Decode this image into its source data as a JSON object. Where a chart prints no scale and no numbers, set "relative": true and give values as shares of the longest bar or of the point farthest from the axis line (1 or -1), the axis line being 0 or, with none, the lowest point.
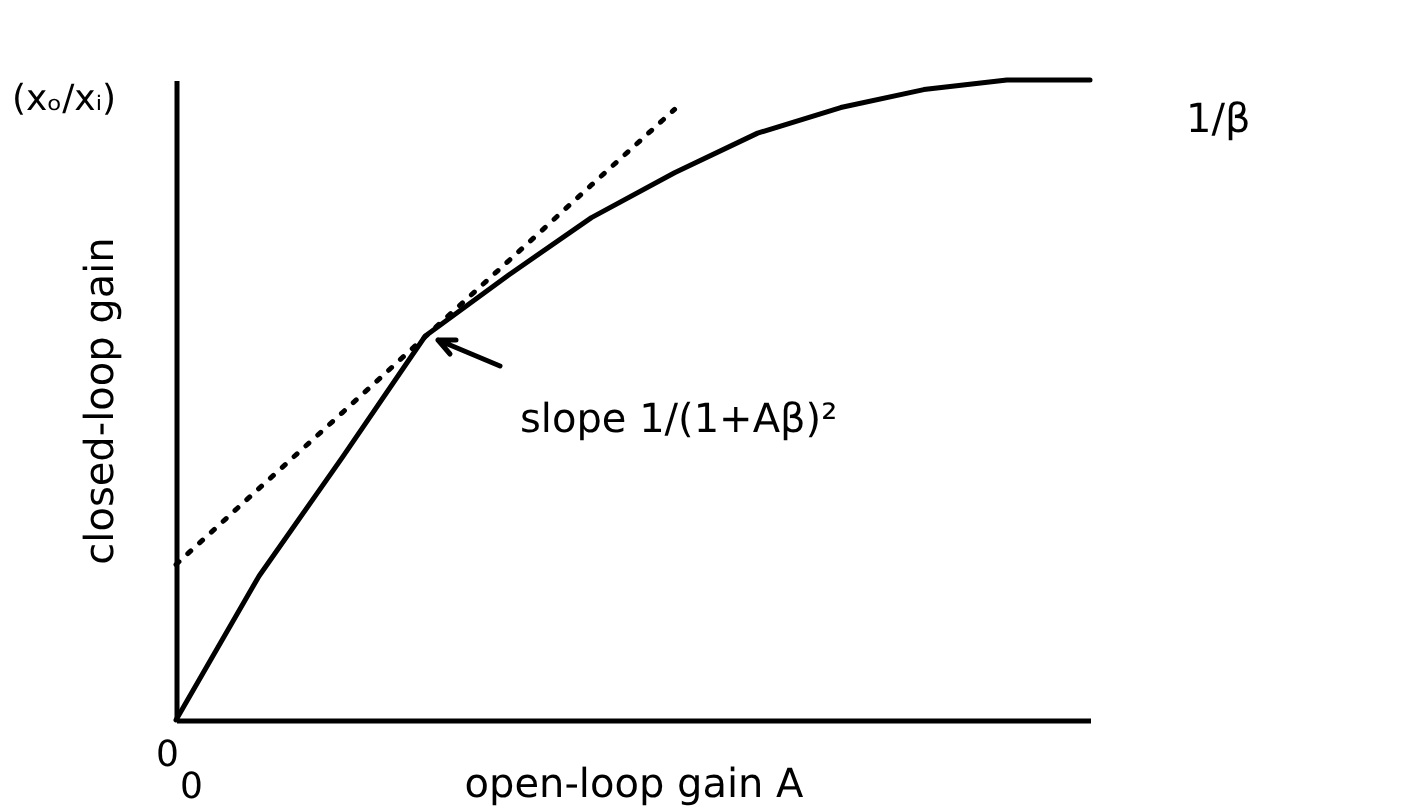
{
  "chart_data": {
    "type": "line",
    "relative": true,
    "xlabel": "open-loop gain A",
    "ylabel": "closed-loop gain",
    "categories": [
      null,
      null,
      null,
      null,
      null,
      null,
      null,
      null,
      null,
      null,
      null,
      null
    ],
    "series": [
      {
        "color": "#000000",
        "line_style": "solid",
        "values": [
          0,
          0.225,
          0.41,
          0.6,
          0.695,
          0.785,
          0.855,
          0.917,
          0.957,
          0.985,
          1.0,
          1.0
        ]
      },
      {
        "type": "line",
        "color": "#000000",
        "line_style": "dotted",
        "values": [
          0.243,
          0.362,
          0.48,
          0.599,
          0.717,
          0.836,
          0.954,
          null,
          null,
          null,
          null,
          null
        ]
      }
    ],
    "annotations": [
      "(xₒ/xᵢ)",
      "0",
      "0",
      "slope 1/(1+Aβ)²",
      "1/β"
    ],
    "grid": false,
    "marker": "none"
  }
}
